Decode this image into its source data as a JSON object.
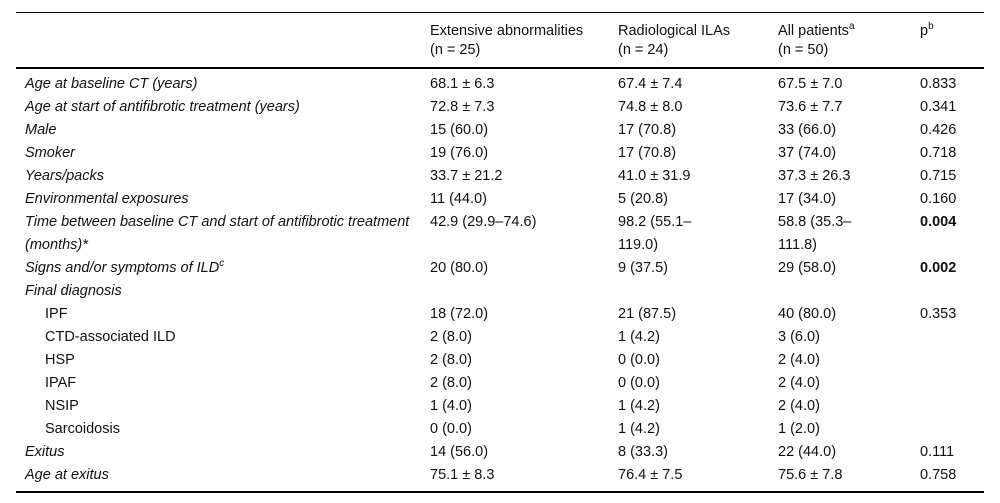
{
  "table": {
    "columns": [
      {
        "label": "Extensive abnormalities",
        "sup": "",
        "sub": "(n = 25)"
      },
      {
        "label": "Radiological ILAs",
        "sup": "",
        "sub": "(n = 24)"
      },
      {
        "label": "All patients",
        "sup": "a",
        "sub": "(n = 50)"
      },
      {
        "label": "p",
        "sup": "b",
        "sub": ""
      }
    ],
    "rows": [
      {
        "label": "Age at baseline CT (years)",
        "label_sup": "",
        "values": [
          "68.1 ± 6.3",
          "67.4 ± 7.4",
          "67.5 ± 7.0",
          "0.833"
        ]
      },
      {
        "label": "Age at start of antifibrotic treatment (years)",
        "label_sup": "",
        "values": [
          "72.8 ± 7.3",
          "74.8 ± 8.0",
          "73.6 ± 7.7",
          "0.341"
        ]
      },
      {
        "label": "Male",
        "label_sup": "",
        "values": [
          "15 (60.0)",
          "17 (70.8)",
          "33 (66.0)",
          "0.426"
        ]
      },
      {
        "label": "Smoker",
        "label_sup": "",
        "values": [
          "19 (76.0)",
          "17 (70.8)",
          "37 (74.0)",
          "0.718"
        ]
      },
      {
        "label": "Years/packs",
        "label_sup": "",
        "values": [
          "33.7 ± 21.2",
          "41.0 ± 31.9",
          "37.3 ± 26.3",
          "0.715"
        ]
      },
      {
        "label": "Environmental exposures",
        "label_sup": "",
        "values": [
          "11 (44.0)",
          "5 (20.8)",
          "17 (34.0)",
          "0.160"
        ]
      },
      {
        "label": "Time between baseline CT and start of antifibrotic treatment (months)*",
        "label_sup": "",
        "values": [
          "42.9 (29.9–74.6)",
          "98.2 (55.1–119.0)",
          "58.8 (35.3–111.8)",
          "0.004"
        ]
      },
      {
        "label": "Signs and/or symptoms of ILD",
        "label_sup": "c",
        "values": [
          "20 (80.0)",
          "9 (37.5)",
          "29 (58.0)",
          "0.002"
        ]
      },
      {
        "label": "Final diagnosis",
        "label_sup": "",
        "values": [
          "",
          "",
          "",
          ""
        ]
      },
      {
        "label": "IPF",
        "label_sup": "",
        "values": [
          "18 (72.0)",
          "21 (87.5)",
          "40 (80.0)",
          "0.353"
        ]
      },
      {
        "label": "CTD-associated ILD",
        "label_sup": "",
        "values": [
          "2 (8.0)",
          "1 (4.2)",
          "3 (6.0)",
          ""
        ]
      },
      {
        "label": "HSP",
        "label_sup": "",
        "values": [
          "2 (8.0)",
          "0 (0.0)",
          "2 (4.0)",
          ""
        ]
      },
      {
        "label": "IPAF",
        "label_sup": "",
        "values": [
          "2 (8.0)",
          "0 (0.0)",
          "2 (4.0)",
          ""
        ]
      },
      {
        "label": "NSIP",
        "label_sup": "",
        "values": [
          "1 (4.0)",
          "1 (4.2)",
          "2 (4.0)",
          ""
        ]
      },
      {
        "label": "Sarcoidosis",
        "label_sup": "",
        "values": [
          "0 (0.0)",
          "1 (4.2)",
          "1 (2.0)",
          ""
        ]
      },
      {
        "label": "Exitus",
        "label_sup": "",
        "values": [
          "14 (56.0)",
          "8 (33.3)",
          "22 (44.0)",
          "0.111"
        ]
      },
      {
        "label": "Age at exitus",
        "label_sup": "",
        "values": [
          "75.1 ± 8.3",
          "76.4 ± 7.5",
          "75.6 ± 7.8",
          "0.758"
        ]
      }
    ]
  }
}
